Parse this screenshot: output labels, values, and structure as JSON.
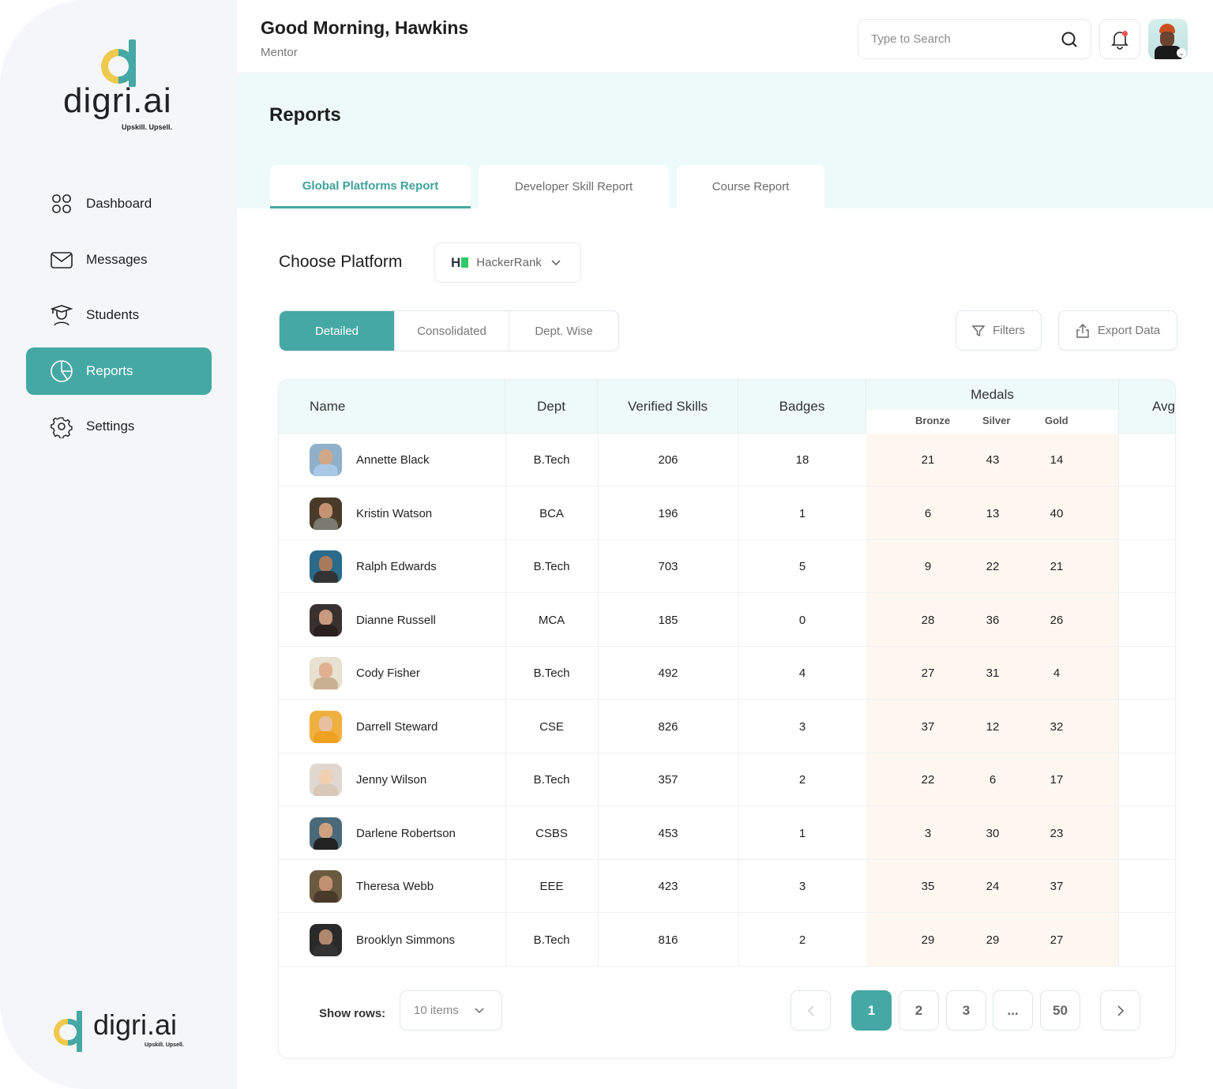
{
  "brand": {
    "name": "digri.ai",
    "tagline": "Upskill. Upsell.",
    "colors": {
      "accent": "#45a8a4",
      "yellow": "#efc84e"
    }
  },
  "sidebar": {
    "items": [
      {
        "label": "Dashboard",
        "icon": "grid-icon"
      },
      {
        "label": "Messages",
        "icon": "mail-icon"
      },
      {
        "label": "Students",
        "icon": "graduate-icon"
      },
      {
        "label": "Reports",
        "icon": "pie-chart-icon",
        "active": true
      },
      {
        "label": "Settings",
        "icon": "gear-icon"
      }
    ]
  },
  "header": {
    "greeting": "Good Morning, Hawkins",
    "role": "Mentor",
    "search_placeholder": "Type to Search"
  },
  "page": {
    "title": "Reports",
    "tabs": [
      {
        "label": "Global Platforms Report",
        "active": true
      },
      {
        "label": "Developer Skill Report"
      },
      {
        "label": "Course Report"
      }
    ]
  },
  "platform": {
    "label": "Choose Platform",
    "selected": "HackerRank",
    "logo_text": "H"
  },
  "views": [
    {
      "label": "Detailed",
      "active": true
    },
    {
      "label": "Consolidated"
    },
    {
      "label": "Dept. Wise"
    }
  ],
  "actions": {
    "filters": "Filters",
    "export": "Export Data"
  },
  "table": {
    "headers": {
      "name": "Name",
      "dept": "Dept",
      "skills": "Verified Skills",
      "badges": "Badges",
      "medals": "Medals",
      "bronze": "Bronze",
      "silver": "Silver",
      "gold": "Gold",
      "avg": "Avg"
    },
    "rows": [
      {
        "name": "Annette Black",
        "dept": "B.Tech",
        "skills": "206",
        "badges": "18",
        "bronze": "21",
        "silver": "43",
        "gold": "14"
      },
      {
        "name": "Kristin Watson",
        "dept": "BCA",
        "skills": "196",
        "badges": "1",
        "bronze": "6",
        "silver": "13",
        "gold": "40"
      },
      {
        "name": "Ralph Edwards",
        "dept": "B.Tech",
        "skills": "703",
        "badges": "5",
        "bronze": "9",
        "silver": "22",
        "gold": "21"
      },
      {
        "name": "Dianne Russell",
        "dept": "MCA",
        "skills": "185",
        "badges": "0",
        "bronze": "28",
        "silver": "36",
        "gold": "26"
      },
      {
        "name": "Cody Fisher",
        "dept": "B.Tech",
        "skills": "492",
        "badges": "4",
        "bronze": "27",
        "silver": "31",
        "gold": "4"
      },
      {
        "name": "Darrell Steward",
        "dept": "CSE",
        "skills": "826",
        "badges": "3",
        "bronze": "37",
        "silver": "12",
        "gold": "32"
      },
      {
        "name": "Jenny Wilson",
        "dept": "B.Tech",
        "skills": "357",
        "badges": "2",
        "bronze": "22",
        "silver": "6",
        "gold": "17"
      },
      {
        "name": "Darlene Robertson",
        "dept": "CSBS",
        "skills": "453",
        "badges": "1",
        "bronze": "3",
        "silver": "30",
        "gold": "23"
      },
      {
        "name": "Theresa Webb",
        "dept": "EEE",
        "skills": "423",
        "badges": "3",
        "bronze": "35",
        "silver": "24",
        "gold": "37"
      },
      {
        "name": "Brooklyn Simmons",
        "dept": "B.Tech",
        "skills": "816",
        "badges": "2",
        "bronze": "29",
        "silver": "29",
        "gold": "27"
      }
    ]
  },
  "pagination": {
    "show_rows_label": "Show rows:",
    "rows_selected": "10 items",
    "pages": [
      "1",
      "2",
      "3",
      "...",
      "50"
    ],
    "current": "1"
  }
}
